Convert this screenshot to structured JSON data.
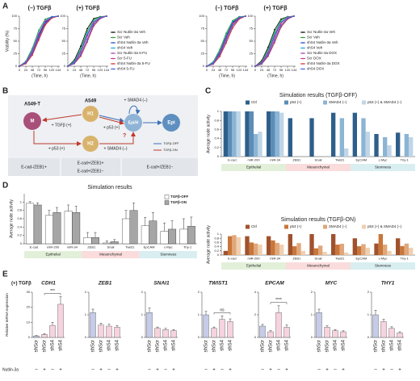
{
  "panel_labels": [
    "A",
    "B",
    "C",
    "D",
    "E"
  ],
  "diagram": {
    "nodes": {
      "M": "M",
      "H1": "H1",
      "EpiH": "Epi/H",
      "Epi": "Epi",
      "H2": "H2"
    },
    "cell_lines": [
      "A549-T",
      "A549"
    ],
    "edges": [
      "+ TGFβ (+)",
      "+ p53 (+)",
      "+ SMAD4 (–)",
      "+ p53 (+)",
      "+ SMAD4 (–)",
      "?"
    ],
    "legend": [
      "TGFβ-OFF",
      "TGFβ-ON"
    ],
    "phenotypes": [
      "E-cad-/ZEB1+",
      "E-cad+/ZEB1+",
      "E-cad+/ZEB1−",
      "E-cad+/ZEB1−"
    ]
  },
  "chart_data": [
    {
      "type": "line",
      "ylabel": "Viability (%)",
      "xlabel": "(Time, h)",
      "x": [
        0,
        24,
        48,
        72,
        96,
        120,
        144
      ],
      "xlim": [
        0,
        150
      ],
      "xticks": [
        0,
        24,
        48,
        72,
        96,
        120,
        144
      ],
      "ylim": [
        0,
        100
      ],
      "yticks": [
        0,
        25,
        50,
        75,
        100
      ],
      "series": [
        {
          "name": "Scr Nutlin-3a Veh",
          "color": "#000000"
        },
        {
          "name": "Scr Veh",
          "color": "#2ca02c"
        },
        {
          "name": "shS4 Nutlin-3a Veh",
          "color": "#1f3fbf"
        },
        {
          "name": "shS4 Veh",
          "color": "#17a8d8"
        },
        {
          "name": "Scr Nutlin-3a 5-FU",
          "color": "#a040a0"
        },
        {
          "name": "Scr 5-FU",
          "color": "#d0309a"
        },
        {
          "name": "shS4 Nutlin-3a 5-FU",
          "color": "#d62728"
        },
        {
          "name": "shS4 5-FU",
          "color": "#4060e0"
        }
      ],
      "subplots": [
        {
          "title": "(–) TGFβ",
          "values": [
            [
              0,
              8,
              30,
              62,
              88,
              98,
              100
            ],
            [
              0,
              10,
              36,
              72,
              94,
              99,
              100
            ],
            [
              0,
              7,
              28,
              60,
              86,
              97,
              100
            ],
            [
              0,
              9,
              33,
              68,
              92,
              99,
              100
            ],
            [
              0,
              6,
              25,
              55,
              84,
              97,
              100
            ],
            [
              0,
              8,
              30,
              64,
              90,
              98,
              100
            ],
            [
              0,
              5,
              22,
              52,
              82,
              96,
              100
            ],
            [
              0,
              7,
              27,
              58,
              87,
              98,
              100
            ]
          ]
        },
        {
          "title": "(+) TGFβ",
          "values": [
            [
              0,
              12,
              40,
              75,
              95,
              99,
              100
            ],
            [
              0,
              10,
              35,
              70,
              93,
              99,
              100
            ],
            [
              0,
              8,
              30,
              62,
              88,
              98,
              100
            ],
            [
              0,
              9,
              32,
              66,
              90,
              98,
              100
            ],
            [
              0,
              6,
              24,
              54,
              84,
              96,
              100
            ],
            [
              0,
              7,
              28,
              60,
              87,
              97,
              100
            ],
            [
              0,
              5,
              20,
              48,
              80,
              95,
              100
            ],
            [
              0,
              6,
              23,
              52,
              83,
              96,
              100
            ]
          ]
        }
      ]
    },
    {
      "type": "line",
      "xlabel": "(Time, h)",
      "x": [
        0,
        24,
        48,
        72,
        96,
        120,
        144
      ],
      "xlim": [
        0,
        150
      ],
      "xticks": [
        0,
        24,
        48,
        72,
        96,
        120,
        144
      ],
      "ylim": [
        0,
        100
      ],
      "yticks": [
        0,
        25,
        50,
        75,
        100
      ],
      "series": [
        {
          "name": "Scr Nutlin-3a Veh",
          "color": "#000000"
        },
        {
          "name": "Scr Veh",
          "color": "#2ca02c"
        },
        {
          "name": "shS4 Nutlin-3a Veh",
          "color": "#1f3fbf"
        },
        {
          "name": "shS4 Veh",
          "color": "#17a8d8"
        },
        {
          "name": "Scr Nutlin-3a DOX",
          "color": "#a040a0"
        },
        {
          "name": "Scr DOX",
          "color": "#d0309a"
        },
        {
          "name": "shS4 Nutlin-3a DOX",
          "color": "#d62728"
        },
        {
          "name": "shS4 DOX",
          "color": "#4060e0"
        }
      ],
      "subplots": [
        {
          "title": "(–) TGFβ",
          "values": [
            [
              0,
              7,
              28,
              60,
              87,
              98,
              100
            ],
            [
              0,
              9,
              33,
              66,
              91,
              99,
              100
            ],
            [
              0,
              6,
              25,
              56,
              85,
              97,
              100
            ],
            [
              0,
              8,
              30,
              62,
              89,
              98,
              100
            ],
            [
              0,
              5,
              22,
              50,
              80,
              95,
              100
            ],
            [
              0,
              6,
              26,
              57,
              85,
              97,
              100
            ],
            [
              0,
              4,
              19,
              46,
              76,
              94,
              100
            ],
            [
              0,
              5,
              23,
              52,
              82,
              96,
              100
            ]
          ]
        },
        {
          "title": "(+) TGFβ",
          "values": [
            [
              0,
              11,
              38,
              73,
              94,
              99,
              100
            ],
            [
              0,
              9,
              34,
              68,
              92,
              99,
              100
            ],
            [
              0,
              8,
              29,
              61,
              87,
              98,
              100
            ],
            [
              0,
              8,
              31,
              64,
              89,
              98,
              100
            ],
            [
              0,
              6,
              24,
              53,
              82,
              96,
              100
            ],
            [
              0,
              7,
              27,
              58,
              86,
              97,
              100
            ],
            [
              0,
              4,
              20,
              47,
              78,
              94,
              100
            ],
            [
              0,
              5,
              22,
              51,
              81,
              95,
              100
            ]
          ]
        }
      ]
    },
    {
      "type": "bar",
      "title": "Simulation results (TGFβ-OFF)",
      "ylabel": "Average node activity",
      "categories": [
        "E-cad",
        "miR-200",
        "miR-34",
        "ZEB1",
        "Snail",
        "Twist1",
        "EpCAM",
        "c-Myc",
        "Thy-1"
      ],
      "category_groups": [
        "Epithelial",
        "Epithelial",
        "Epithelial",
        "Mesenchymal",
        "Mesenchymal",
        "Mesenchymal",
        "Stemness",
        "Stemness",
        "Stemness"
      ],
      "ylim": [
        0,
        1
      ],
      "yticks": [
        0,
        0.2,
        0.4,
        0.6,
        0.8,
        1
      ],
      "series": [
        {
          "name": "Ctrl",
          "color": "#2e5f8a",
          "values": [
            1,
            1,
            1,
            0.85,
            0.85,
            0.97,
            0.97,
            0.5,
            0.53
          ]
        },
        {
          "name": "p53 (+)",
          "color": "#5b8db8",
          "values": [
            1,
            1,
            1,
            0,
            0,
            0,
            0,
            0,
            0
          ]
        },
        {
          "name": "SMAD4 (–)",
          "color": "#8cb4d4",
          "values": [
            1,
            0.5,
            1,
            0,
            0,
            0.85,
            0.85,
            0.43,
            0.5
          ]
        },
        {
          "name": "p53 (+) & SMAD4 (–)",
          "color": "#c0d6e8",
          "values": [
            1,
            0.55,
            0.97,
            0,
            0,
            0.18,
            0.55,
            0.25,
            0.43
          ]
        }
      ]
    },
    {
      "type": "bar",
      "title": "Simulation results (TGFβ-ON)",
      "ylabel": "Average node activity",
      "categories": [
        "E-cad",
        "miR-200",
        "miR-34",
        "ZEB1",
        "Snail",
        "Twist1",
        "EpCAM",
        "c-Myc",
        "Thy-1"
      ],
      "category_groups": [
        "Epithelial",
        "Epithelial",
        "Epithelial",
        "Mesenchymal",
        "Mesenchymal",
        "Mesenchymal",
        "Stemness",
        "Stemness",
        "Stemness"
      ],
      "ylim": [
        0,
        1
      ],
      "yticks": [
        0,
        0.2,
        0.4,
        0.6,
        0.8,
        1
      ],
      "series": [
        {
          "name": "Ctrl",
          "color": "#a0522d",
          "values": [
            0.2,
            0.9,
            0.9,
            1,
            1,
            1,
            0.8,
            0.55,
            0.8
          ]
        },
        {
          "name": "p53 (+)",
          "color": "#c8763a",
          "values": [
            0.9,
            0.6,
            0.7,
            0.42,
            0.32,
            0.5,
            0.42,
            1,
            0.43
          ]
        },
        {
          "name": "SMAD4 (–)",
          "color": "#e0a77a",
          "values": [
            0.95,
            0.55,
            0.58,
            0.57,
            0.45,
            0.54,
            0.52,
            0.5,
            0.55
          ]
        },
        {
          "name": "p53 (+) & SMAD4 (–)",
          "color": "#f0cfb0",
          "values": [
            0.85,
            0.5,
            0.5,
            0.2,
            0.15,
            0.12,
            0.35,
            0.2,
            0.35
          ]
        }
      ]
    },
    {
      "type": "bar",
      "title": "Simulation results",
      "ylabel": "Average node activity",
      "categories": [
        "E-cad",
        "miR-200",
        "miR-34",
        "ZEB1",
        "Snail",
        "Twist1",
        "EpCAM",
        "c-Myc",
        "Thy-1"
      ],
      "category_groups": [
        "Epithelial",
        "Epithelial",
        "Epithelial",
        "Mesenchymal",
        "Mesenchymal",
        "Mesenchymal",
        "Stemness",
        "Stemness",
        "Stemness"
      ],
      "ylim": [
        0,
        1.2
      ],
      "yticks": [
        0,
        0.2,
        0.4,
        0.6,
        0.8,
        1
      ],
      "series": [
        {
          "name": "TGFβ-OFF",
          "color": "#ffffff",
          "values": [
            0.97,
            0.68,
            0.78,
            0.15,
            0.02,
            0.6,
            0.43,
            0.3,
            0.35
          ],
          "errors": [
            0.04,
            0.12,
            0.15,
            0.12,
            0.05,
            0.2,
            0.2,
            0.2,
            0.25
          ]
        },
        {
          "name": "TGFβ-ON",
          "color": "#a6a6a6",
          "values": [
            0.93,
            0.75,
            0.75,
            0.15,
            0.05,
            0.8,
            0.55,
            0.35,
            0.42
          ],
          "errors": [
            0.05,
            0.12,
            0.15,
            0.12,
            0.05,
            0.18,
            0.2,
            0.2,
            0.22
          ]
        }
      ]
    },
    {
      "type": "bar",
      "condition": "(+) TGFβ",
      "ylabel": "Relative mRNA expression",
      "categories": [
        "shScr",
        "shScr",
        "shS4",
        "shS4"
      ],
      "factor_label": "Nutlin-3a",
      "factor_levels": [
        "–",
        "+",
        "–",
        "+"
      ],
      "colors": [
        "#c5cbe8",
        "#f6d3de",
        "#f6d3de",
        "#f6d3de"
      ],
      "subplots": [
        {
          "title": "CDH1",
          "ylim": [
            0,
            30
          ],
          "yticks": [
            0,
            10,
            20,
            30
          ],
          "values": [
            1,
            2,
            8,
            22
          ],
          "errors": [
            0.3,
            0.5,
            2,
            5
          ],
          "annotation": "***"
        },
        {
          "title": "ZEB1",
          "ylim": [
            0,
            2
          ],
          "yticks": [
            0,
            1,
            2
          ],
          "values": [
            1.1,
            0.55,
            0.5,
            0.45
          ],
          "errors": [
            0.15,
            0.08,
            0.08,
            0.07
          ]
        },
        {
          "title": "SNAI1",
          "ylim": [
            0,
            2
          ],
          "yticks": [
            0,
            1,
            2
          ],
          "values": [
            1.1,
            0.4,
            0.35,
            0.3
          ],
          "errors": [
            0.2,
            0.06,
            0.05,
            0.05
          ]
        },
        {
          "title": "TWIST1",
          "ylim": [
            0,
            2
          ],
          "yticks": [
            0,
            1,
            2
          ],
          "values": [
            1,
            0.4,
            0.8,
            0.7
          ],
          "errors": [
            0.15,
            0.06,
            0.15,
            0.12
          ],
          "annotation": "ns"
        },
        {
          "title": "EPCAM",
          "ylim": [
            0,
            4
          ],
          "yticks": [
            0,
            2,
            4
          ],
          "values": [
            1,
            0.5,
            2.2,
            0.9
          ],
          "errors": [
            0.15,
            0.1,
            0.6,
            0.2
          ],
          "annotation": "****"
        },
        {
          "title": "MYC",
          "ylim": [
            0,
            2
          ],
          "yticks": [
            0,
            1,
            2
          ],
          "values": [
            1.1,
            0.45,
            0.3,
            0.25
          ],
          "errors": [
            0.15,
            0.06,
            0.05,
            0.04
          ]
        },
        {
          "title": "THY1",
          "ylim": [
            0,
            2
          ],
          "yticks": [
            0,
            1,
            2
          ],
          "values": [
            1,
            0.7,
            0.4,
            0.2
          ],
          "errors": [
            0.2,
            0.1,
            0.07,
            0.05
          ]
        }
      ]
    }
  ]
}
